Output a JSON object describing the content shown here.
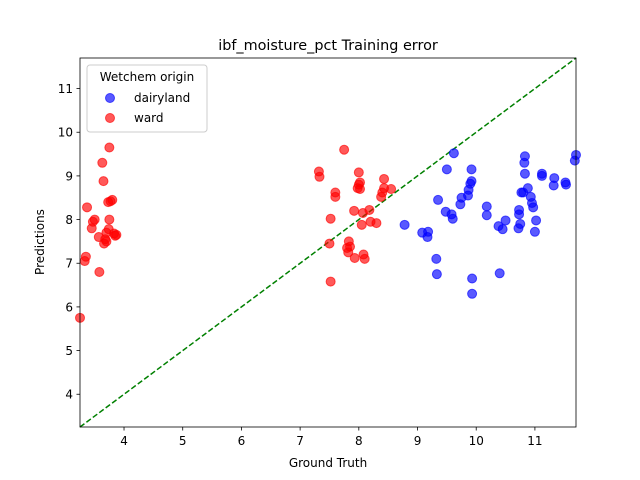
{
  "chart_data": {
    "type": "scatter",
    "title": "ibf_moisture_pct Training error",
    "xlabel": "Ground Truth",
    "ylabel": "Predictions",
    "xlim": [
      3.25,
      11.7
    ],
    "ylim": [
      3.25,
      11.7
    ],
    "xticks": [
      "4",
      "5",
      "6",
      "7",
      "8",
      "9",
      "10",
      "11"
    ],
    "yticks": [
      "4",
      "5",
      "6",
      "7",
      "8",
      "9",
      "10",
      "11"
    ],
    "grid": false,
    "legend": {
      "title": "Wetchem origin",
      "placement": "top-left"
    },
    "reference_line": {
      "style": "dashed",
      "color": "#008000",
      "from": [
        3.25,
        3.25
      ],
      "to": [
        11.7,
        11.7
      ]
    },
    "series": [
      {
        "name": "dairyland",
        "color": "#0000ff",
        "points": [
          [
            8.78,
            7.88
          ],
          [
            9.08,
            7.7
          ],
          [
            9.17,
            7.6
          ],
          [
            9.18,
            7.72
          ],
          [
            9.32,
            7.1
          ],
          [
            9.33,
            6.75
          ],
          [
            9.35,
            8.45
          ],
          [
            9.48,
            8.18
          ],
          [
            9.5,
            9.15
          ],
          [
            9.58,
            8.12
          ],
          [
            9.6,
            8.02
          ],
          [
            9.62,
            9.52
          ],
          [
            9.73,
            8.35
          ],
          [
            9.75,
            8.5
          ],
          [
            9.86,
            8.55
          ],
          [
            9.87,
            8.68
          ],
          [
            9.9,
            8.82
          ],
          [
            9.92,
            8.88
          ],
          [
            9.92,
            9.15
          ],
          [
            9.93,
            6.3
          ],
          [
            9.93,
            6.65
          ],
          [
            10.18,
            8.1
          ],
          [
            10.18,
            8.3
          ],
          [
            10.38,
            7.85
          ],
          [
            10.4,
            6.77
          ],
          [
            10.45,
            7.78
          ],
          [
            10.5,
            7.98
          ],
          [
            10.72,
            7.8
          ],
          [
            10.73,
            8.12
          ],
          [
            10.73,
            8.22
          ],
          [
            10.75,
            7.9
          ],
          [
            10.77,
            8.62
          ],
          [
            10.8,
            8.62
          ],
          [
            10.82,
            9.3
          ],
          [
            10.83,
            9.05
          ],
          [
            10.83,
            9.45
          ],
          [
            10.88,
            8.72
          ],
          [
            10.93,
            8.52
          ],
          [
            10.95,
            8.38
          ],
          [
            10.97,
            8.28
          ],
          [
            11.0,
            7.72
          ],
          [
            11.02,
            7.98
          ],
          [
            11.12,
            9.05
          ],
          [
            11.12,
            9.0
          ],
          [
            11.32,
            8.78
          ],
          [
            11.33,
            8.95
          ],
          [
            11.52,
            8.85
          ],
          [
            11.53,
            8.8
          ],
          [
            11.68,
            9.35
          ],
          [
            11.7,
            9.48
          ]
        ]
      },
      {
        "name": "ward",
        "color": "#ff0000",
        "points": [
          [
            3.25,
            5.75
          ],
          [
            3.33,
            7.05
          ],
          [
            3.35,
            7.15
          ],
          [
            3.37,
            8.28
          ],
          [
            3.45,
            7.8
          ],
          [
            3.47,
            7.95
          ],
          [
            3.5,
            8.0
          ],
          [
            3.57,
            7.6
          ],
          [
            3.58,
            6.8
          ],
          [
            3.63,
            9.3
          ],
          [
            3.65,
            8.88
          ],
          [
            3.66,
            7.45
          ],
          [
            3.68,
            7.55
          ],
          [
            3.7,
            7.5
          ],
          [
            3.7,
            7.7
          ],
          [
            3.73,
            8.4
          ],
          [
            3.74,
            7.78
          ],
          [
            3.75,
            8.0
          ],
          [
            3.75,
            9.65
          ],
          [
            3.77,
            8.42
          ],
          [
            3.8,
            8.45
          ],
          [
            3.83,
            7.68
          ],
          [
            3.85,
            7.63
          ],
          [
            3.87,
            7.65
          ],
          [
            7.32,
            9.1
          ],
          [
            7.33,
            8.98
          ],
          [
            7.5,
            7.45
          ],
          [
            7.52,
            8.02
          ],
          [
            7.52,
            6.58
          ],
          [
            7.6,
            8.52
          ],
          [
            7.6,
            8.62
          ],
          [
            7.75,
            9.6
          ],
          [
            7.8,
            7.35
          ],
          [
            7.82,
            7.25
          ],
          [
            7.83,
            7.5
          ],
          [
            7.85,
            7.38
          ],
          [
            7.92,
            8.2
          ],
          [
            7.93,
            7.12
          ],
          [
            7.98,
            8.72
          ],
          [
            8.0,
            8.8
          ],
          [
            8.0,
            9.08
          ],
          [
            8.02,
            8.7
          ],
          [
            8.02,
            8.85
          ],
          [
            8.05,
            7.88
          ],
          [
            8.07,
            8.15
          ],
          [
            8.08,
            7.2
          ],
          [
            8.1,
            7.1
          ],
          [
            8.18,
            8.22
          ],
          [
            8.2,
            7.95
          ],
          [
            8.3,
            7.92
          ],
          [
            8.38,
            8.52
          ],
          [
            8.4,
            8.62
          ],
          [
            8.43,
            8.72
          ],
          [
            8.43,
            8.93
          ],
          [
            8.55,
            8.7
          ]
        ]
      }
    ]
  }
}
